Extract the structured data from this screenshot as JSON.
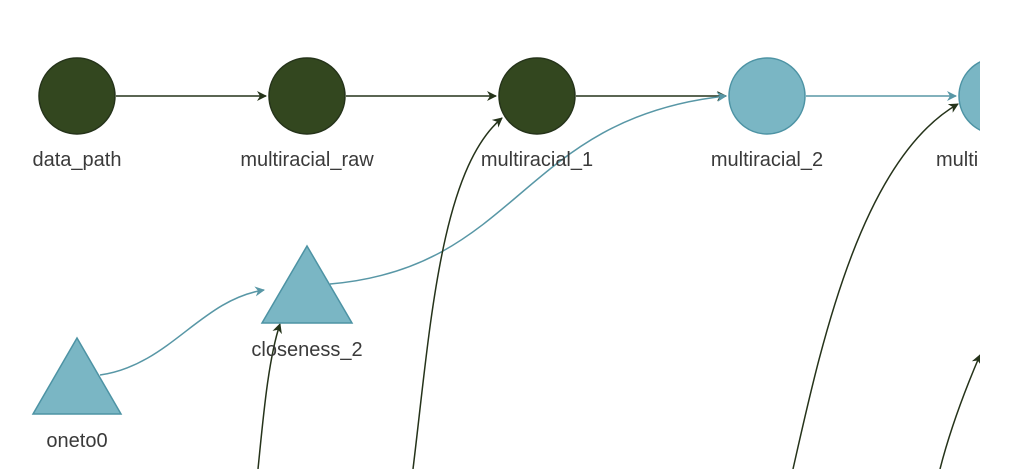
{
  "colors": {
    "outdated": "#33471f",
    "outdated_stroke": "#25331a",
    "uptodate": "#7ab6c4",
    "uptodate_stroke": "#4d93a4",
    "edge_dark": "#25331a",
    "edge_light": "#5897a6"
  },
  "nodes": {
    "data_path": {
      "label": "data_path",
      "shape": "circle",
      "status": "outdated"
    },
    "multiracial_raw": {
      "label": "multiracial_raw",
      "shape": "circle",
      "status": "outdated"
    },
    "multiracial_1": {
      "label": "multiracial_1",
      "shape": "circle",
      "status": "outdated"
    },
    "multiracial_2": {
      "label": "multiracial_2",
      "shape": "circle",
      "status": "uptodate"
    },
    "multiracial_3": {
      "label": "multi",
      "shape": "circle",
      "status": "uptodate"
    },
    "closeness_2": {
      "label": "closeness_2",
      "shape": "triangle",
      "status": "uptodate"
    },
    "oneto0": {
      "label": "oneto0",
      "shape": "triangle",
      "status": "uptodate"
    }
  },
  "edges": [
    {
      "from": "data_path",
      "to": "multiracial_raw",
      "color": "dark"
    },
    {
      "from": "multiracial_raw",
      "to": "multiracial_1",
      "color": "dark"
    },
    {
      "from": "multiracial_1",
      "to": "multiracial_2",
      "color": "dark"
    },
    {
      "from": "multiracial_2",
      "to": "multiracial_3",
      "color": "light"
    },
    {
      "from": "oneto0",
      "to": "closeness_2",
      "color": "light"
    },
    {
      "from": "closeness_2",
      "to": "multiracial_2",
      "color": "light"
    },
    {
      "from": "offscreen",
      "to": "closeness_2",
      "color": "dark"
    },
    {
      "from": "offscreen",
      "to": "multiracial_1",
      "color": "dark"
    },
    {
      "from": "offscreen",
      "to": "multiracial_3",
      "color": "dark"
    },
    {
      "from": "offscreen",
      "to": "offscreen",
      "color": "dark"
    }
  ]
}
